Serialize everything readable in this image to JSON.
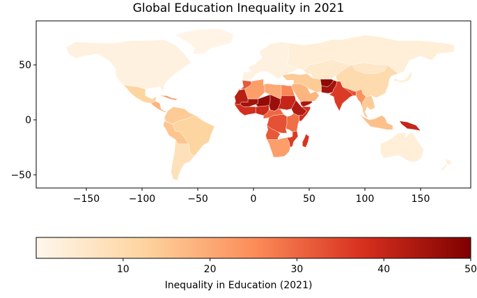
{
  "chart_data": {
    "type": "choropleth-map",
    "title": "Global Education Inequality in 2021",
    "x_ticks": [
      -150,
      -100,
      -50,
      0,
      50,
      100,
      150
    ],
    "y_ticks": [
      50,
      0,
      -50
    ],
    "xlim": [
      -195,
      195
    ],
    "ylim": [
      -62,
      90
    ],
    "colorbar": {
      "label": "Inequality in Education (2021)",
      "ticks": [
        10,
        20,
        30,
        40,
        50
      ],
      "range": [
        0,
        50
      ],
      "colormap": "OrRd",
      "colors": [
        "#fff7ec",
        "#fdd49e",
        "#fc8d59",
        "#d7301f",
        "#7f0000"
      ]
    },
    "regions": [
      {
        "name": "North America",
        "value": 2
      },
      {
        "name": "Greenland",
        "value": 1
      },
      {
        "name": "Mexico",
        "value": 12
      },
      {
        "name": "Central America",
        "value": 18
      },
      {
        "name": "Caribbean",
        "value": 25
      },
      {
        "name": "Colombia / Venezuela",
        "value": 14
      },
      {
        "name": "Brazil",
        "value": 12
      },
      {
        "name": "Peru / Bolivia",
        "value": 15
      },
      {
        "name": "Argentina / Chile",
        "value": 8
      },
      {
        "name": "Europe",
        "value": 2
      },
      {
        "name": "Russia",
        "value": 3
      },
      {
        "name": "Morocco",
        "value": 32
      },
      {
        "name": "Algeria",
        "value": 22
      },
      {
        "name": "Libya",
        "value": 20
      },
      {
        "name": "Egypt",
        "value": 26
      },
      {
        "name": "Mali",
        "value": 45
      },
      {
        "name": "Mauritania / Senegal",
        "value": 42
      },
      {
        "name": "Niger",
        "value": 47
      },
      {
        "name": "Chad",
        "value": 46
      },
      {
        "name": "Sudan",
        "value": 40
      },
      {
        "name": "Ethiopia",
        "value": 43
      },
      {
        "name": "Somalia",
        "value": 38
      },
      {
        "name": "West Africa coast",
        "value": 38
      },
      {
        "name": "Nigeria",
        "value": 39
      },
      {
        "name": "Central Africa",
        "value": 30
      },
      {
        "name": "DR Congo",
        "value": 33
      },
      {
        "name": "East Africa",
        "value": 29
      },
      {
        "name": "Angola",
        "value": 32
      },
      {
        "name": "Southern Africa",
        "value": 22
      },
      {
        "name": "Mozambique",
        "value": 36
      },
      {
        "name": "Madagascar",
        "value": 37
      },
      {
        "name": "Arabian Peninsula",
        "value": 18
      },
      {
        "name": "Yemen",
        "value": 44
      },
      {
        "name": "Iran / Turkey",
        "value": 14
      },
      {
        "name": "Central Asia",
        "value": 5
      },
      {
        "name": "Afghanistan",
        "value": 48
      },
      {
        "name": "Pakistan",
        "value": 45
      },
      {
        "name": "India",
        "value": 36
      },
      {
        "name": "Bangladesh / Nepal",
        "value": 33
      },
      {
        "name": "Myanmar",
        "value": 24
      },
      {
        "name": "China",
        "value": 10
      },
      {
        "name": "Mongolia",
        "value": 6
      },
      {
        "name": "Japan / Korea",
        "value": 3
      },
      {
        "name": "Southeast Asia",
        "value": 14
      },
      {
        "name": "Indonesia",
        "value": 16
      },
      {
        "name": "Papua New Guinea",
        "value": 40
      },
      {
        "name": "Australia",
        "value": 3
      },
      {
        "name": "New Zealand",
        "value": 3
      }
    ]
  }
}
